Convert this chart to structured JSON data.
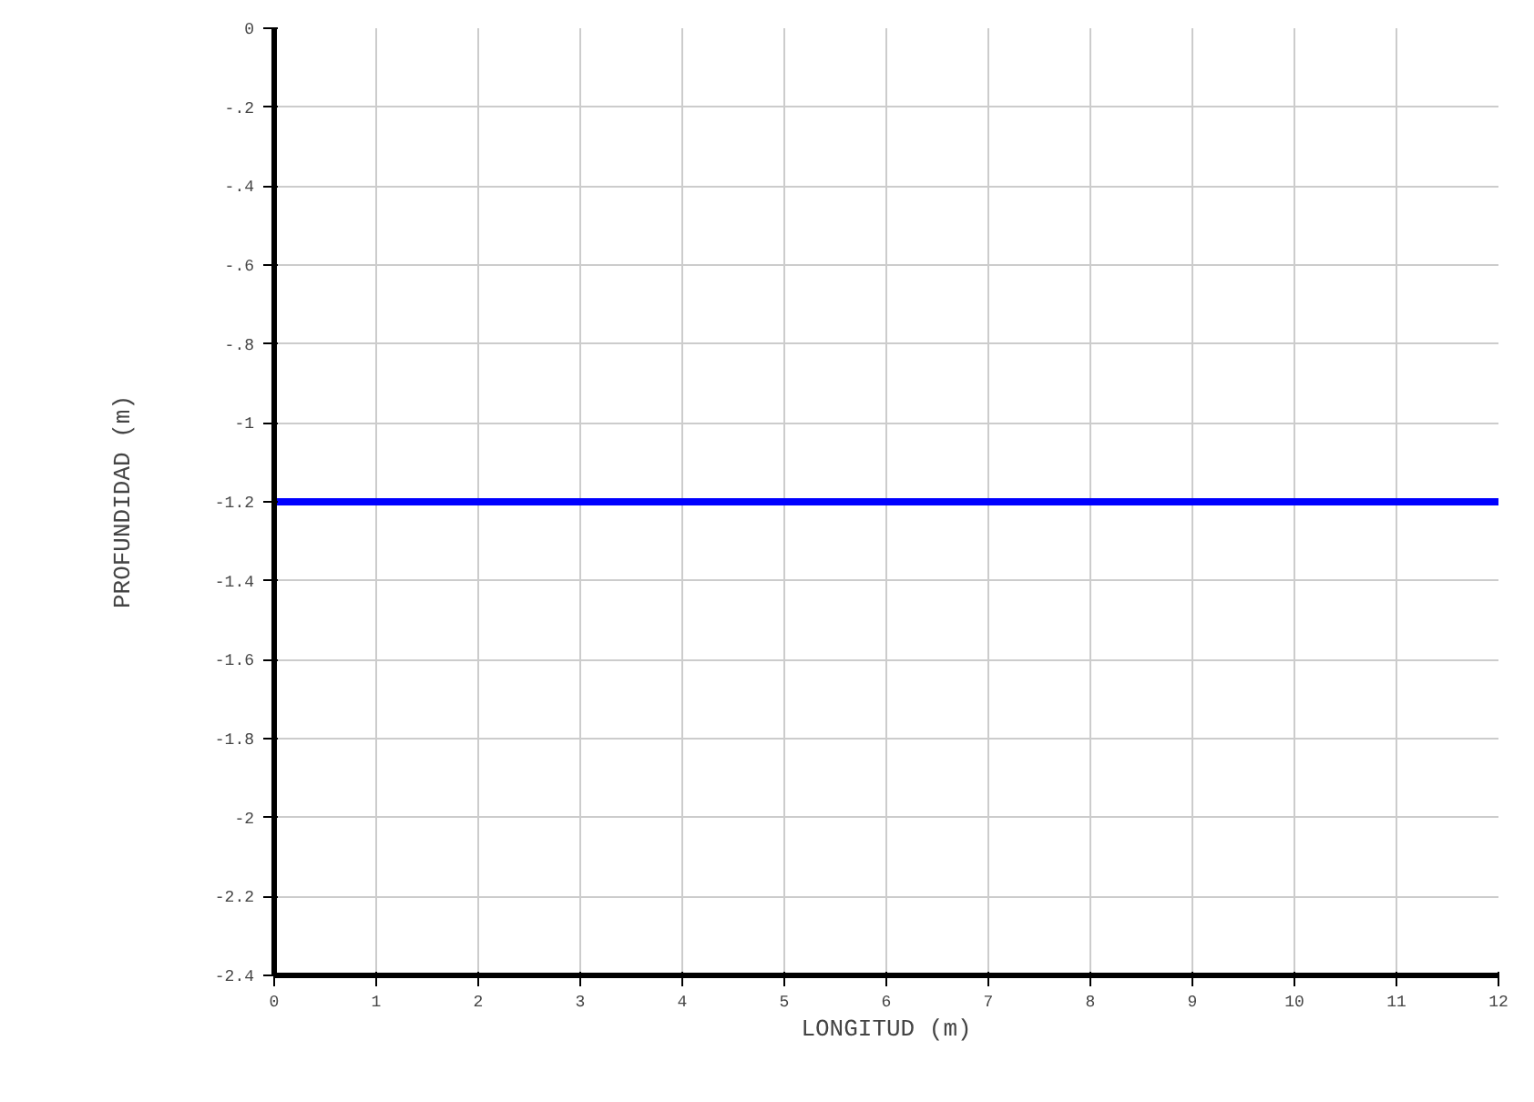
{
  "chart_data": {
    "type": "line",
    "xlabel": "LONGITUD (m)",
    "ylabel": "PROFUNDIDAD (m)",
    "x": [
      0,
      12
    ],
    "series": [
      {
        "color": "#0000ff",
        "values": [
          -1.2,
          -1.2
        ]
      }
    ],
    "xlim": [
      0,
      12
    ],
    "ylim": [
      -2.4,
      0
    ],
    "xticks": [
      0,
      1,
      2,
      3,
      4,
      5,
      6,
      7,
      8,
      9,
      10,
      11,
      12
    ],
    "yticks": [
      0,
      {
        "value": -0.2,
        "label": "-.2"
      },
      {
        "value": -0.4,
        "label": "-.4"
      },
      {
        "value": -0.6,
        "label": "-.6"
      },
      {
        "value": -0.8,
        "label": "-.8"
      },
      -1,
      -1.2,
      -1.4,
      -1.6,
      -1.8,
      -2,
      -2.2,
      -2.4
    ],
    "grid": true,
    "marker": "none",
    "line_style": "solid"
  }
}
